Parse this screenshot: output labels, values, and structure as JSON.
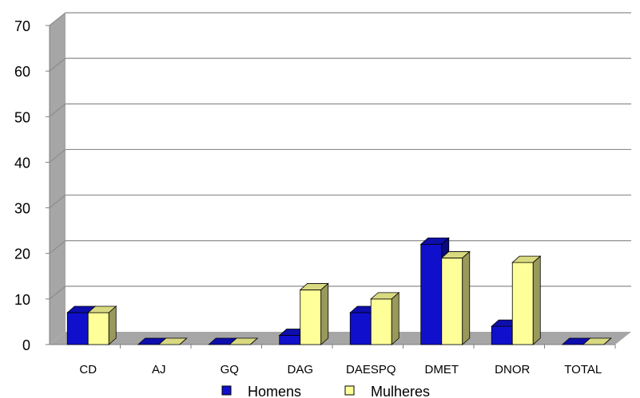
{
  "chart_data": {
    "type": "bar",
    "title": "",
    "xlabel": "",
    "ylabel": "",
    "ylim": [
      0,
      70
    ],
    "yticks": [
      0,
      10,
      20,
      30,
      40,
      50,
      60,
      70
    ],
    "grid": true,
    "legend_position": "bottom",
    "categories": [
      "CD",
      "AJ",
      "GQ",
      "DAG",
      "DAESPQ",
      "DMET",
      "DNOR",
      "TOTAL"
    ],
    "series": [
      {
        "name": "Homens",
        "color": "#1010cc",
        "values": [
          7,
          0,
          0,
          2,
          7,
          22,
          4,
          0
        ]
      },
      {
        "name": "Mulheres",
        "color": "#ffff99",
        "values": [
          7,
          0,
          0,
          12,
          10,
          19,
          18,
          0
        ]
      }
    ]
  }
}
